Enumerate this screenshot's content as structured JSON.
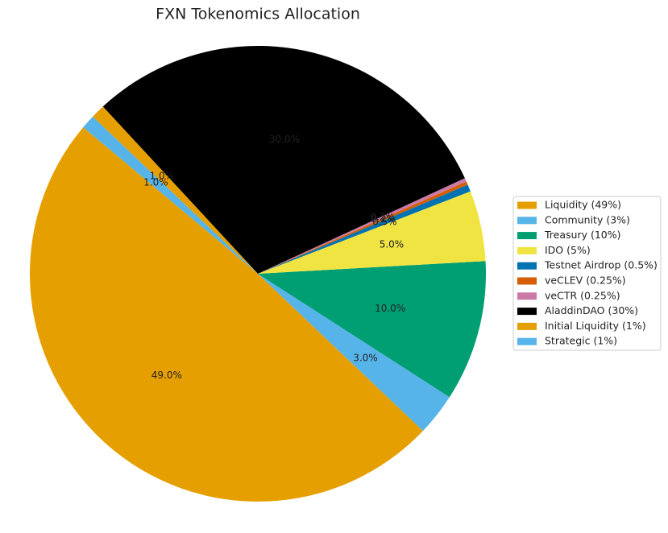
{
  "chart_data": {
    "type": "pie",
    "title": "FXN Tokenomics Allocation",
    "categories": [
      "Liquidity (49%)",
      "Community (3%)",
      "Treasury (10%)",
      "IDO (5%)",
      "Testnet Airdrop (0.5%)",
      "veCLEV (0.25%)",
      "veCTR (0.25%)",
      "AladdinDAO (30%)",
      "Initial Liquidity (1%)",
      "Strategic (1%)"
    ],
    "values": [
      49,
      3,
      10,
      5,
      0.5,
      0.25,
      0.25,
      30,
      1,
      1
    ],
    "value_labels": [
      "49.0%",
      "3.0%",
      "10.0%",
      "5.0%",
      "0.5%",
      "0.2%",
      "0.2%",
      "30.0%",
      "1.0%",
      "1.0%"
    ],
    "colors": [
      "#E69F00",
      "#56B4E9",
      "#009E73",
      "#F0E442",
      "#0072B2",
      "#D55E00",
      "#CC79A7",
      "#000000",
      "#E69F00",
      "#56B4E9"
    ],
    "legend": "right"
  }
}
